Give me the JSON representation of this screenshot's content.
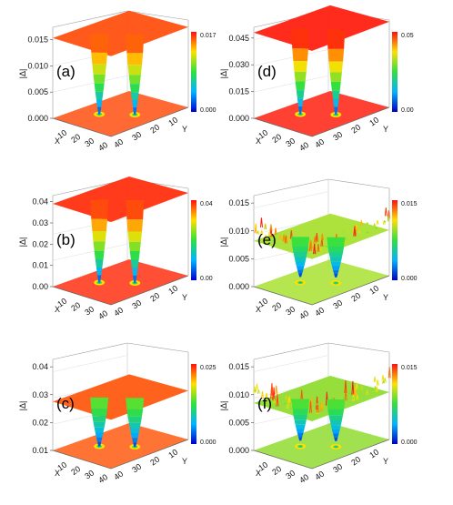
{
  "figure": {
    "z_axis_label": "|Δ|"
  },
  "chart_data": [
    {
      "type": "surface3d",
      "panel_label": "(a)",
      "z_label": "|Δ|",
      "x_axis_label": "X",
      "y_axis_label": "Y",
      "x_ticks": [
        "10",
        "20",
        "30",
        "40"
      ],
      "y_ticks": [
        "10",
        "20",
        "30",
        "40"
      ],
      "z_ticks": [
        "0.000",
        "0.005",
        "0.010",
        "0.015"
      ],
      "zlim": [
        0,
        0.017
      ],
      "plateau": 0.0153,
      "surface_color": "#ff5010",
      "colorbar": {
        "max": "0.017",
        "min": "0.000"
      },
      "vortex_cores": [
        {
          "x": 18,
          "y": 20,
          "min": 0.0
        },
        {
          "x": 33,
          "y": 30,
          "min": 0.0
        }
      ],
      "noise": "none"
    },
    {
      "type": "surface3d",
      "panel_label": "(b)",
      "z_label": "|Δ|",
      "x_axis_label": "X",
      "y_axis_label": "Y",
      "x_ticks": [
        "10",
        "20",
        "30",
        "40"
      ],
      "y_ticks": [
        "10",
        "20",
        "30",
        "40"
      ],
      "z_ticks": [
        "0.00",
        "0.01",
        "0.02",
        "0.03",
        "0.04"
      ],
      "zlim": [
        0,
        0.042
      ],
      "plateau": 0.039,
      "surface_color": "#ff3010",
      "colorbar": {
        "max": "0.04",
        "min": "0.00"
      },
      "vortex_cores": [
        {
          "x": 18,
          "y": 20,
          "min": 0.0
        },
        {
          "x": 33,
          "y": 30,
          "min": 0.0
        }
      ],
      "noise": "none"
    },
    {
      "type": "surface3d",
      "panel_label": "(c)",
      "z_label": "|Δ|",
      "x_axis_label": "X",
      "y_axis_label": "Y",
      "x_ticks": [
        "10",
        "20",
        "30",
        "40"
      ],
      "y_ticks": [
        "10",
        "20",
        "30",
        "40"
      ],
      "z_ticks": [
        "0.01",
        "0.02",
        "0.03",
        "0.04"
      ],
      "zlim": [
        0,
        0.042
      ],
      "plateau": 0.023,
      "surface_color": "#ff5a10",
      "colorbar": {
        "max": "0.025",
        "min": "0.000"
      },
      "vortex_cores": [
        {
          "x": 18,
          "y": 20,
          "min": 0.0
        },
        {
          "x": 33,
          "y": 30,
          "min": 0.0
        }
      ],
      "noise": "none"
    },
    {
      "type": "surface3d",
      "panel_label": "(d)",
      "z_label": "|Δ|",
      "x_axis_label": "X",
      "y_axis_label": "Y",
      "x_ticks": [
        "10",
        "20",
        "30",
        "40"
      ],
      "y_ticks": [
        "10",
        "20",
        "30",
        "40"
      ],
      "z_ticks": [
        "0.000",
        "0.015",
        "0.030",
        "0.045"
      ],
      "zlim": [
        0,
        0.05
      ],
      "plateau": 0.048,
      "surface_color": "#ff2010",
      "colorbar": {
        "max": "0.05",
        "min": "0.00"
      },
      "vortex_cores": [
        {
          "x": 18,
          "y": 20,
          "min": 0.0
        },
        {
          "x": 33,
          "y": 30,
          "min": 0.0
        }
      ],
      "noise": "none"
    },
    {
      "type": "surface3d",
      "panel_label": "(e)",
      "z_label": "|Δ|",
      "x_axis_label": "X",
      "y_axis_label": "Y",
      "x_ticks": [
        "10",
        "20",
        "30",
        "40"
      ],
      "y_ticks": [
        "10",
        "20",
        "30",
        "40"
      ],
      "z_ticks": [
        "0.000",
        "0.005",
        "0.010",
        "0.015"
      ],
      "zlim": [
        0,
        0.016
      ],
      "plateau": 0.0082,
      "surface_color": "#a8e030",
      "colorbar": {
        "max": "0.015",
        "min": "0.000"
      },
      "vortex_cores": [
        {
          "x": 18,
          "y": 20,
          "min": 0.001
        },
        {
          "x": 33,
          "y": 30,
          "min": 0.001
        }
      ],
      "noise": "spiky"
    },
    {
      "type": "surface3d",
      "panel_label": "(f)",
      "z_label": "|Δ|",
      "x_axis_label": "X",
      "y_axis_label": "Y",
      "x_ticks": [
        "10",
        "20",
        "30",
        "40"
      ],
      "y_ticks": [
        "10",
        "20",
        "30",
        "40"
      ],
      "z_ticks": [
        "0.000",
        "0.005",
        "0.010",
        "0.015"
      ],
      "zlim": [
        0,
        0.016
      ],
      "plateau": 0.0085,
      "surface_color": "#90dc30",
      "colorbar": {
        "max": "0.015",
        "min": "0.000"
      },
      "vortex_cores": [
        {
          "x": 18,
          "y": 20,
          "min": 0.001
        },
        {
          "x": 33,
          "y": 30,
          "min": 0.001
        }
      ],
      "noise": "very-spiky"
    }
  ]
}
